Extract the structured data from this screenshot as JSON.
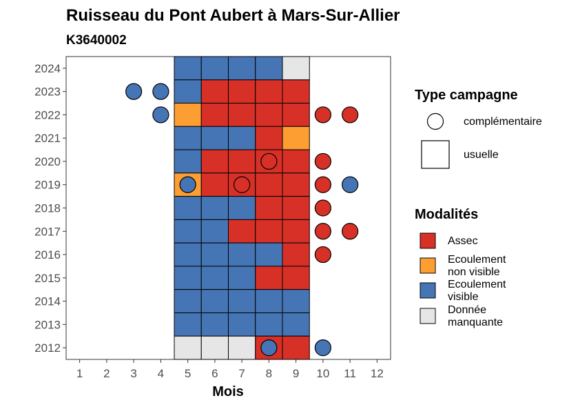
{
  "chart_data": {
    "type": "heatmap",
    "title": "Ruisseau du Pont Aubert à Mars-Sur-Allier",
    "subtitle": "K3640002",
    "xlabel": "Mois",
    "ylabel": "",
    "x_ticks": [
      1,
      2,
      3,
      4,
      5,
      6,
      7,
      8,
      9,
      10,
      11,
      12
    ],
    "y_ticks": [
      2012,
      2013,
      2014,
      2015,
      2016,
      2017,
      2018,
      2019,
      2020,
      2021,
      2022,
      2023,
      2024
    ],
    "xlim": [
      0.5,
      12.5
    ],
    "ylim": [
      2011.5,
      2024.5
    ],
    "colors": {
      "Assec": "#d73027",
      "Ecoulement non visible": "#fd9e33",
      "Ecoulement visible": "#4575b4",
      "Donnée manquante": "#e6e6e6"
    },
    "legend_campaign": {
      "title": "Type campagne",
      "items": [
        {
          "shape": "circle",
          "label": "complémentaire"
        },
        {
          "shape": "square",
          "label": "usuelle"
        }
      ]
    },
    "legend_modalites": {
      "title": "Modalités",
      "items": [
        {
          "key": "Assec",
          "lines": [
            "Assec"
          ]
        },
        {
          "key": "Ecoulement non visible",
          "lines": [
            "Ecoulement",
            "non visible"
          ]
        },
        {
          "key": "Ecoulement visible",
          "lines": [
            "Ecoulement",
            "visible"
          ]
        },
        {
          "key": "Donnée manquante",
          "lines": [
            "Donnée",
            "manquante"
          ]
        }
      ]
    },
    "usuelle": [
      {
        "year": 2024,
        "month": 5,
        "status": "Ecoulement visible"
      },
      {
        "year": 2024,
        "month": 6,
        "status": "Ecoulement visible"
      },
      {
        "year": 2024,
        "month": 7,
        "status": "Ecoulement visible"
      },
      {
        "year": 2024,
        "month": 8,
        "status": "Ecoulement visible"
      },
      {
        "year": 2024,
        "month": 9,
        "status": "Donnée manquante"
      },
      {
        "year": 2023,
        "month": 5,
        "status": "Ecoulement visible"
      },
      {
        "year": 2023,
        "month": 6,
        "status": "Assec"
      },
      {
        "year": 2023,
        "month": 7,
        "status": "Assec"
      },
      {
        "year": 2023,
        "month": 8,
        "status": "Assec"
      },
      {
        "year": 2023,
        "month": 9,
        "status": "Assec"
      },
      {
        "year": 2022,
        "month": 5,
        "status": "Ecoulement non visible"
      },
      {
        "year": 2022,
        "month": 6,
        "status": "Assec"
      },
      {
        "year": 2022,
        "month": 7,
        "status": "Assec"
      },
      {
        "year": 2022,
        "month": 8,
        "status": "Assec"
      },
      {
        "year": 2022,
        "month": 9,
        "status": "Assec"
      },
      {
        "year": 2021,
        "month": 5,
        "status": "Ecoulement visible"
      },
      {
        "year": 2021,
        "month": 6,
        "status": "Ecoulement visible"
      },
      {
        "year": 2021,
        "month": 7,
        "status": "Ecoulement visible"
      },
      {
        "year": 2021,
        "month": 8,
        "status": "Assec"
      },
      {
        "year": 2021,
        "month": 9,
        "status": "Ecoulement non visible"
      },
      {
        "year": 2020,
        "month": 5,
        "status": "Ecoulement visible"
      },
      {
        "year": 2020,
        "month": 6,
        "status": "Assec"
      },
      {
        "year": 2020,
        "month": 7,
        "status": "Assec"
      },
      {
        "year": 2020,
        "month": 8,
        "status": "Assec"
      },
      {
        "year": 2020,
        "month": 9,
        "status": "Assec"
      },
      {
        "year": 2019,
        "month": 5,
        "status": "Ecoulement non visible"
      },
      {
        "year": 2019,
        "month": 6,
        "status": "Assec"
      },
      {
        "year": 2019,
        "month": 7,
        "status": "Assec"
      },
      {
        "year": 2019,
        "month": 8,
        "status": "Assec"
      },
      {
        "year": 2019,
        "month": 9,
        "status": "Assec"
      },
      {
        "year": 2018,
        "month": 5,
        "status": "Ecoulement visible"
      },
      {
        "year": 2018,
        "month": 6,
        "status": "Ecoulement visible"
      },
      {
        "year": 2018,
        "month": 7,
        "status": "Ecoulement visible"
      },
      {
        "year": 2018,
        "month": 8,
        "status": "Assec"
      },
      {
        "year": 2018,
        "month": 9,
        "status": "Assec"
      },
      {
        "year": 2017,
        "month": 5,
        "status": "Ecoulement visible"
      },
      {
        "year": 2017,
        "month": 6,
        "status": "Ecoulement visible"
      },
      {
        "year": 2017,
        "month": 7,
        "status": "Assec"
      },
      {
        "year": 2017,
        "month": 8,
        "status": "Assec"
      },
      {
        "year": 2017,
        "month": 9,
        "status": "Assec"
      },
      {
        "year": 2016,
        "month": 5,
        "status": "Ecoulement visible"
      },
      {
        "year": 2016,
        "month": 6,
        "status": "Ecoulement visible"
      },
      {
        "year": 2016,
        "month": 7,
        "status": "Ecoulement visible"
      },
      {
        "year": 2016,
        "month": 8,
        "status": "Ecoulement visible"
      },
      {
        "year": 2016,
        "month": 9,
        "status": "Assec"
      },
      {
        "year": 2015,
        "month": 5,
        "status": "Ecoulement visible"
      },
      {
        "year": 2015,
        "month": 6,
        "status": "Ecoulement visible"
      },
      {
        "year": 2015,
        "month": 7,
        "status": "Ecoulement visible"
      },
      {
        "year": 2015,
        "month": 8,
        "status": "Assec"
      },
      {
        "year": 2015,
        "month": 9,
        "status": "Assec"
      },
      {
        "year": 2014,
        "month": 5,
        "status": "Ecoulement visible"
      },
      {
        "year": 2014,
        "month": 6,
        "status": "Ecoulement visible"
      },
      {
        "year": 2014,
        "month": 7,
        "status": "Ecoulement visible"
      },
      {
        "year": 2014,
        "month": 8,
        "status": "Ecoulement visible"
      },
      {
        "year": 2014,
        "month": 9,
        "status": "Ecoulement visible"
      },
      {
        "year": 2013,
        "month": 5,
        "status": "Ecoulement visible"
      },
      {
        "year": 2013,
        "month": 6,
        "status": "Ecoulement visible"
      },
      {
        "year": 2013,
        "month": 7,
        "status": "Ecoulement visible"
      },
      {
        "year": 2013,
        "month": 8,
        "status": "Ecoulement visible"
      },
      {
        "year": 2013,
        "month": 9,
        "status": "Ecoulement visible"
      },
      {
        "year": 2012,
        "month": 5,
        "status": "Donnée manquante"
      },
      {
        "year": 2012,
        "month": 6,
        "status": "Donnée manquante"
      },
      {
        "year": 2012,
        "month": 7,
        "status": "Donnée manquante"
      },
      {
        "year": 2012,
        "month": 8,
        "status": "Assec"
      },
      {
        "year": 2012,
        "month": 9,
        "status": "Assec"
      }
    ],
    "complementaire": [
      {
        "year": 2023,
        "month": 3,
        "status": "Ecoulement visible"
      },
      {
        "year": 2023,
        "month": 4,
        "status": "Ecoulement visible"
      },
      {
        "year": 2022,
        "month": 4,
        "status": "Ecoulement visible"
      },
      {
        "year": 2022,
        "month": 10,
        "status": "Assec"
      },
      {
        "year": 2022,
        "month": 11,
        "status": "Assec"
      },
      {
        "year": 2020,
        "month": 8,
        "status": "Assec"
      },
      {
        "year": 2020,
        "month": 10,
        "status": "Assec"
      },
      {
        "year": 2019,
        "month": 5,
        "status": "Ecoulement visible"
      },
      {
        "year": 2019,
        "month": 7,
        "status": "Assec"
      },
      {
        "year": 2019,
        "month": 10,
        "status": "Assec"
      },
      {
        "year": 2019,
        "month": 11,
        "status": "Ecoulement visible"
      },
      {
        "year": 2018,
        "month": 10,
        "status": "Assec"
      },
      {
        "year": 2017,
        "month": 10,
        "status": "Assec"
      },
      {
        "year": 2017,
        "month": 11,
        "status": "Assec"
      },
      {
        "year": 2016,
        "month": 10,
        "status": "Assec"
      },
      {
        "year": 2012,
        "month": 8,
        "status": "Ecoulement visible"
      },
      {
        "year": 2012,
        "month": 10,
        "status": "Ecoulement visible"
      }
    ]
  }
}
